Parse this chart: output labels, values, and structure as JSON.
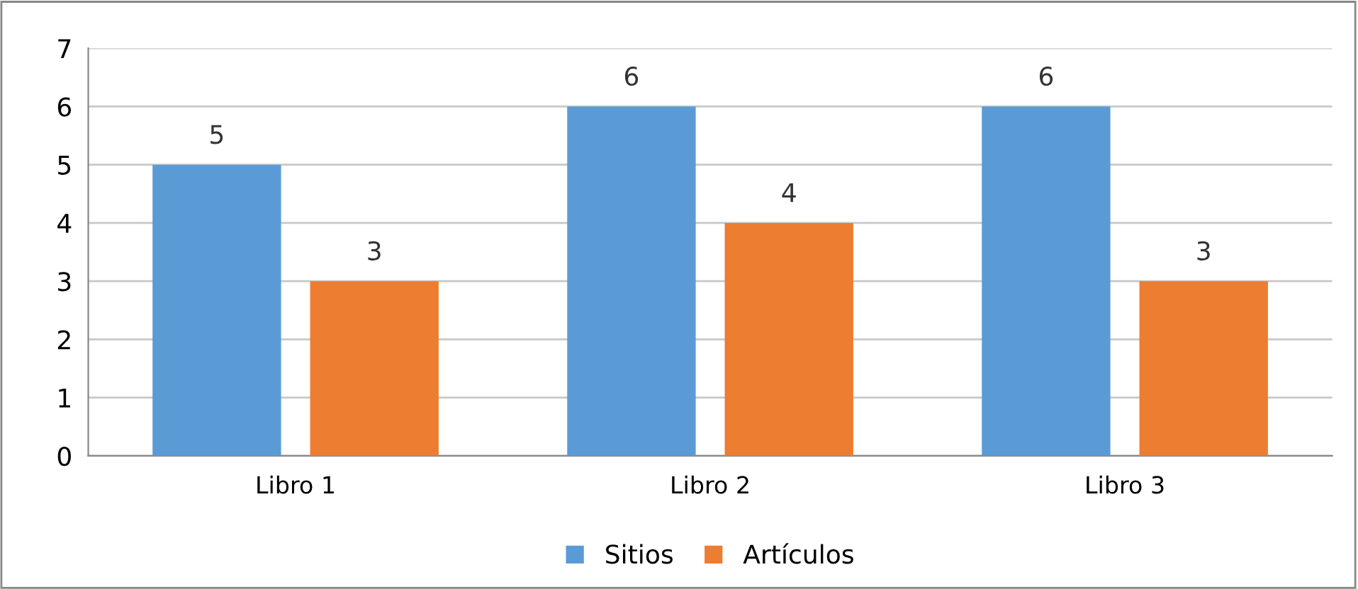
{
  "chart_data": {
    "type": "bar",
    "categories": [
      "Libro 1",
      "Libro 2",
      "Libro 3"
    ],
    "series": [
      {
        "name": "Sitios",
        "color": "#5b9bd5",
        "values": [
          5,
          6,
          6
        ]
      },
      {
        "name": "Artículos",
        "color": "#ed7d31",
        "values": [
          3,
          4,
          3
        ]
      }
    ],
    "ylim": [
      0,
      7
    ],
    "yticks": [
      0,
      1,
      2,
      3,
      4,
      5,
      6,
      7
    ],
    "grid": "y",
    "legend": "bottom",
    "data_labels": true
  }
}
